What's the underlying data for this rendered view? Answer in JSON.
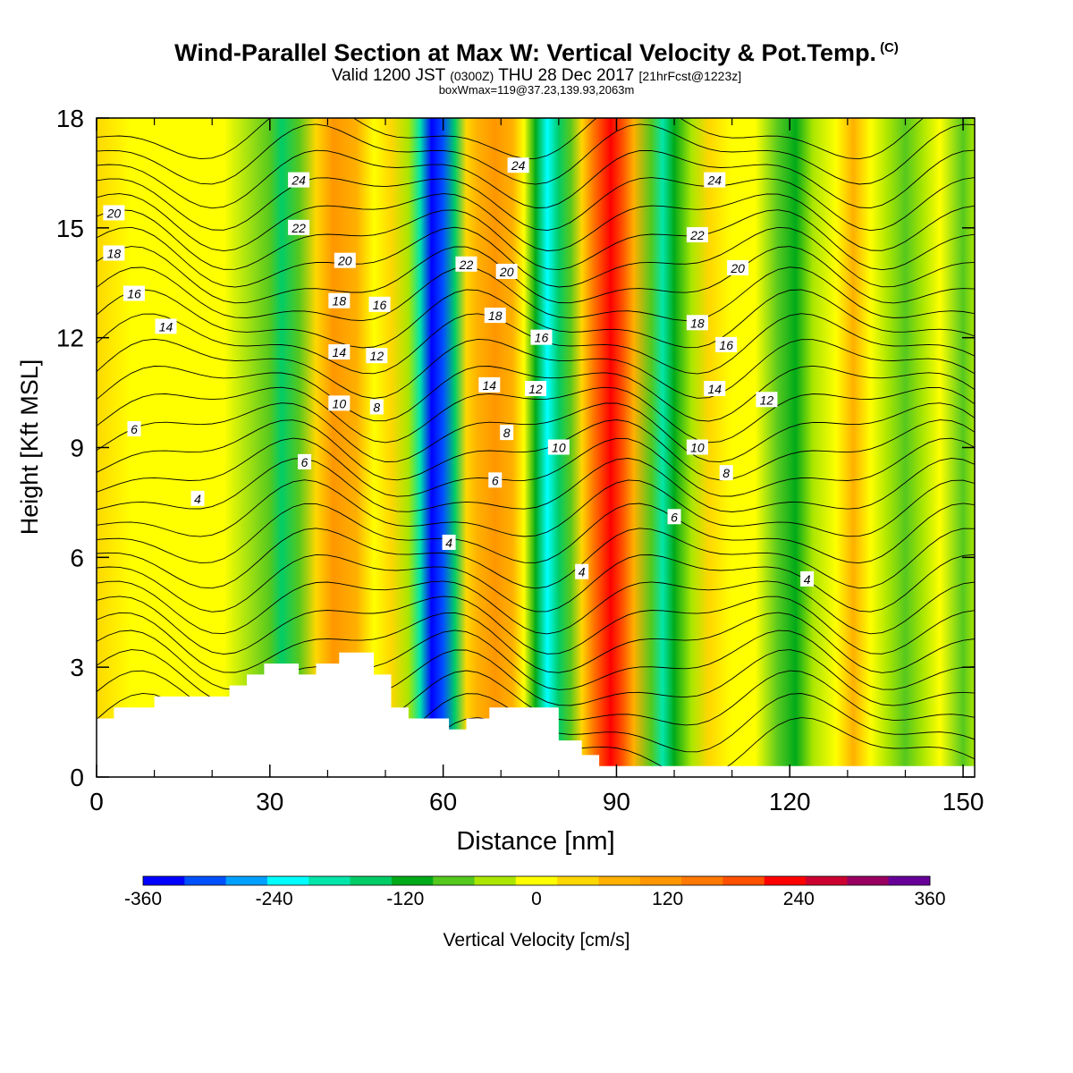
{
  "header": {
    "title": "Wind-Parallel Section at Max W: Vertical Velocity & Pot.Temp.",
    "copyright_mark": "(C)",
    "valid_prefix": "Valid 1200 JST",
    "valid_utc": "(0300Z)",
    "valid_date": "THU 28 Dec 2017",
    "forecast_info": "[21hrFcst@1223z]",
    "box_info": "boxWmax=119@37.23,139.93,2063m"
  },
  "chart_data": {
    "type": "heatmap",
    "xlabel": "Distance [nm]",
    "ylabel": "Height [Kft MSL]",
    "xlim": [
      0,
      152
    ],
    "ylim": [
      0,
      18
    ],
    "x_ticks": [
      0,
      30,
      60,
      90,
      120,
      150
    ],
    "y_ticks": [
      0,
      3,
      6,
      9,
      12,
      15,
      18
    ],
    "colorbar": {
      "label": "Vertical Velocity [cm/s]",
      "levels": [
        -360,
        -330,
        -300,
        -270,
        -240,
        -210,
        -180,
        -150,
        -120,
        -90,
        -60,
        -30,
        0,
        30,
        60,
        90,
        120,
        150,
        180,
        210,
        240,
        270,
        300,
        330,
        360
      ],
      "tick_values": [
        -360,
        -240,
        -120,
        0,
        120,
        240,
        360
      ],
      "tick_labels": [
        "-360",
        "-240",
        "-120",
        "0",
        "120",
        "240",
        "360"
      ],
      "colors": [
        "#0000ff",
        "#0050ff",
        "#00a0ff",
        "#00ffff",
        "#00e6aa",
        "#00cc66",
        "#00aa19",
        "#55c81e",
        "#aae600",
        "#ffff00",
        "#ffd700",
        "#ffb000",
        "#ff9600",
        "#ff7800",
        "#ff5000",
        "#ff0000",
        "#cc0030",
        "#990060",
        "#660099"
      ]
    },
    "vertical_velocity_bands": [
      {
        "x": 0,
        "w": 30
      },
      {
        "x": 6,
        "w": 10
      },
      {
        "x": 14,
        "w": 0
      },
      {
        "x": 22,
        "w": 20
      },
      {
        "x": 30,
        "w": -45
      },
      {
        "x": 32,
        "w": -110
      },
      {
        "x": 35,
        "w": -60
      },
      {
        "x": 38,
        "w": 35
      },
      {
        "x": 41,
        "w": 110
      },
      {
        "x": 45,
        "w": 60
      },
      {
        "x": 48,
        "w": 0
      },
      {
        "x": 51,
        "w": 30
      },
      {
        "x": 54,
        "w": -30
      },
      {
        "x": 56,
        "w": -150
      },
      {
        "x": 58,
        "w": -270
      },
      {
        "x": 60,
        "w": -240
      },
      {
        "x": 62,
        "w": -120
      },
      {
        "x": 64,
        "w": 30
      },
      {
        "x": 66,
        "w": 60
      },
      {
        "x": 69,
        "w": 100
      },
      {
        "x": 72,
        "w": 60
      },
      {
        "x": 74,
        "w": 0
      },
      {
        "x": 76,
        "w": -90
      },
      {
        "x": 78,
        "w": -180
      },
      {
        "x": 80,
        "w": -120
      },
      {
        "x": 82,
        "w": -50
      },
      {
        "x": 84,
        "w": 40
      },
      {
        "x": 86,
        "w": 130
      },
      {
        "x": 89,
        "w": 200
      },
      {
        "x": 91,
        "w": 150
      },
      {
        "x": 93,
        "w": 60
      },
      {
        "x": 96,
        "w": -40
      },
      {
        "x": 98,
        "w": -130
      },
      {
        "x": 100,
        "w": -90
      },
      {
        "x": 103,
        "w": -10
      },
      {
        "x": 106,
        "w": 30
      },
      {
        "x": 110,
        "w": 10
      },
      {
        "x": 114,
        "w": 0
      },
      {
        "x": 118,
        "w": -40
      },
      {
        "x": 121,
        "w": -70
      },
      {
        "x": 124,
        "w": -30
      },
      {
        "x": 128,
        "w": 10
      },
      {
        "x": 131,
        "w": 60
      },
      {
        "x": 134,
        "w": 10
      },
      {
        "x": 137,
        "w": -20
      },
      {
        "x": 140,
        "w": -50
      },
      {
        "x": 143,
        "w": -20
      },
      {
        "x": 146,
        "w": 20
      },
      {
        "x": 150,
        "w": -40
      },
      {
        "x": 152,
        "w": -30
      }
    ],
    "terrain": [
      [
        0,
        1.6
      ],
      [
        3,
        1.6
      ],
      [
        3,
        1.9
      ],
      [
        10,
        1.9
      ],
      [
        10,
        2.2
      ],
      [
        23,
        2.2
      ],
      [
        23,
        2.5
      ],
      [
        26,
        2.5
      ],
      [
        26,
        2.8
      ],
      [
        29,
        2.8
      ],
      [
        29,
        3.1
      ],
      [
        35,
        3.1
      ],
      [
        35,
        2.8
      ],
      [
        38,
        2.8
      ],
      [
        38,
        3.1
      ],
      [
        42,
        3.1
      ],
      [
        42,
        3.4
      ],
      [
        48,
        3.4
      ],
      [
        48,
        2.8
      ],
      [
        51,
        2.8
      ],
      [
        51,
        1.9
      ],
      [
        54,
        1.9
      ],
      [
        54,
        1.6
      ],
      [
        61,
        1.6
      ],
      [
        61,
        1.3
      ],
      [
        64,
        1.3
      ],
      [
        64,
        1.6
      ],
      [
        68,
        1.6
      ],
      [
        68,
        1.9
      ],
      [
        80,
        1.9
      ],
      [
        80,
        1.0
      ],
      [
        84,
        1.0
      ],
      [
        84,
        0.6
      ],
      [
        87,
        0.6
      ],
      [
        87,
        0.3
      ],
      [
        152,
        0.3
      ]
    ],
    "potential_temperature_labels": [
      {
        "text": "20",
        "x": 3,
        "y": 15.4
      },
      {
        "text": "18",
        "x": 3,
        "y": 14.3
      },
      {
        "text": "16",
        "x": 6.5,
        "y": 13.2
      },
      {
        "text": "14",
        "x": 12,
        "y": 12.3
      },
      {
        "text": "6",
        "x": 6.5,
        "y": 9.5
      },
      {
        "text": "4",
        "x": 17.5,
        "y": 7.6
      },
      {
        "text": "24",
        "x": 35,
        "y": 16.3
      },
      {
        "text": "22",
        "x": 35,
        "y": 15.0
      },
      {
        "text": "20",
        "x": 43,
        "y": 14.1
      },
      {
        "text": "18",
        "x": 42,
        "y": 13.0
      },
      {
        "text": "16",
        "x": 49,
        "y": 12.9
      },
      {
        "text": "14",
        "x": 42,
        "y": 11.6
      },
      {
        "text": "12",
        "x": 48.5,
        "y": 11.5
      },
      {
        "text": "10",
        "x": 42,
        "y": 10.2
      },
      {
        "text": "8",
        "x": 48.5,
        "y": 10.1
      },
      {
        "text": "6",
        "x": 36,
        "y": 8.6
      },
      {
        "text": "24",
        "x": 73,
        "y": 16.7
      },
      {
        "text": "22",
        "x": 64,
        "y": 14.0
      },
      {
        "text": "20",
        "x": 71,
        "y": 13.8
      },
      {
        "text": "18",
        "x": 69,
        "y": 12.6
      },
      {
        "text": "16",
        "x": 77,
        "y": 12.0
      },
      {
        "text": "14",
        "x": 68,
        "y": 10.7
      },
      {
        "text": "12",
        "x": 76,
        "y": 10.6
      },
      {
        "text": "8",
        "x": 71,
        "y": 9.4
      },
      {
        "text": "10",
        "x": 80,
        "y": 9.0
      },
      {
        "text": "6",
        "x": 69,
        "y": 8.1
      },
      {
        "text": "4",
        "x": 61,
        "y": 6.4
      },
      {
        "text": "4",
        "x": 84,
        "y": 5.6
      },
      {
        "text": "24",
        "x": 107,
        "y": 16.3
      },
      {
        "text": "22",
        "x": 104,
        "y": 14.8
      },
      {
        "text": "20",
        "x": 111,
        "y": 13.9
      },
      {
        "text": "18",
        "x": 104,
        "y": 12.4
      },
      {
        "text": "16",
        "x": 109,
        "y": 11.8
      },
      {
        "text": "14",
        "x": 107,
        "y": 10.6
      },
      {
        "text": "12",
        "x": 116,
        "y": 10.3
      },
      {
        "text": "10",
        "x": 104,
        "y": 9.0
      },
      {
        "text": "8",
        "x": 109,
        "y": 8.3
      },
      {
        "text": "6",
        "x": 100,
        "y": 7.1
      },
      {
        "text": "4",
        "x": 123,
        "y": 5.4
      }
    ]
  }
}
